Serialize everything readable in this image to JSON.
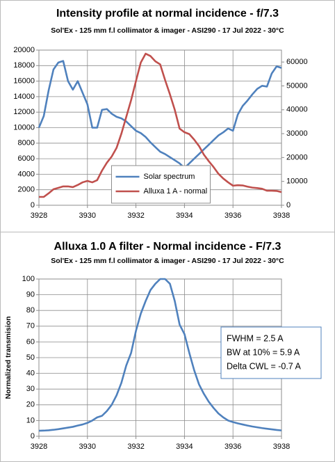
{
  "chart_data": [
    {
      "type": "line",
      "title": "Intensity profile at normal incidence - f/7.3",
      "subtitle": "Sol'Ex - 125 mm f.l collimator & imager - ASI290 - 17 Jul 2022 - 30°C",
      "x": [
        3928.0,
        3928.2,
        3928.4,
        3928.6,
        3928.8,
        3929.0,
        3929.2,
        3929.4,
        3929.6,
        3929.8,
        3930.0,
        3930.2,
        3930.4,
        3930.6,
        3930.8,
        3931.0,
        3931.2,
        3931.4,
        3931.6,
        3931.8,
        3932.0,
        3932.2,
        3932.4,
        3932.6,
        3932.8,
        3933.0,
        3933.2,
        3933.4,
        3933.6,
        3933.8,
        3934.0,
        3934.2,
        3934.4,
        3934.6,
        3934.8,
        3935.0,
        3935.2,
        3935.4,
        3935.6,
        3935.8,
        3936.0,
        3936.2,
        3936.4,
        3936.6,
        3936.8,
        3937.0,
        3937.2,
        3937.4,
        3937.6,
        3937.8,
        3938.0
      ],
      "series": [
        {
          "name": "Solar spectrum",
          "color": "#4f81bd",
          "values": [
            10000,
            11500,
            14800,
            17500,
            18400,
            18600,
            16000,
            14900,
            16000,
            14500,
            13000,
            10000,
            10000,
            12300,
            12400,
            11800,
            11400,
            11200,
            10800,
            10200,
            9600,
            9300,
            8800,
            8100,
            7500,
            6900,
            6600,
            6200,
            5800,
            5400,
            4800,
            5400,
            6000,
            6600,
            7200,
            7800,
            8400,
            9000,
            9400,
            9900,
            9600,
            11700,
            12800,
            13500,
            14300,
            15000,
            15400,
            15300,
            17000,
            17900,
            17700
          ]
        },
        {
          "name": "Alluxa 1 A - normal",
          "color": "#c0504d",
          "axis": "y2",
          "values": [
            3500,
            3500,
            5000,
            6700,
            7300,
            7900,
            7900,
            7600,
            8500,
            9600,
            10200,
            9600,
            10500,
            14500,
            17800,
            20400,
            24000,
            30000,
            37000,
            44000,
            52000,
            59800,
            63500,
            62500,
            60300,
            59000,
            52500,
            46500,
            40000,
            32100,
            30600,
            29800,
            27500,
            24800,
            21200,
            18500,
            16000,
            13200,
            11200,
            9600,
            8200,
            8400,
            8300,
            7800,
            7400,
            7200,
            6900,
            6100,
            6100,
            6000,
            5500
          ]
        }
      ],
      "xlim": [
        3928,
        3938
      ],
      "xticks": [
        3928,
        3930,
        3932,
        3934,
        3936,
        3938
      ],
      "ylim": [
        0,
        20000
      ],
      "yticks": [
        0,
        2000,
        4000,
        6000,
        8000,
        10000,
        12000,
        14000,
        16000,
        18000,
        20000
      ],
      "y2lim": [
        0,
        65000
      ],
      "y2ticks": [
        0,
        10000,
        20000,
        30000,
        40000,
        50000,
        60000
      ],
      "grid": true,
      "legend": "lower center"
    },
    {
      "type": "line",
      "title": "Alluxa 1.0 A filter - Normal incidence - F/7.3",
      "subtitle": "Sol'Ex - 125 mm f.l collimator & imager - ASI290 - 17 Jul 2022 - 30°C",
      "y_label": "Normalized transmision",
      "x": [
        3928.0,
        3928.2,
        3928.4,
        3928.6,
        3928.8,
        3929.0,
        3929.2,
        3929.4,
        3929.6,
        3929.8,
        3930.0,
        3930.2,
        3930.4,
        3930.6,
        3930.8,
        3931.0,
        3931.2,
        3931.4,
        3931.6,
        3931.8,
        3932.0,
        3932.2,
        3932.4,
        3932.6,
        3932.8,
        3933.0,
        3933.2,
        3933.4,
        3933.6,
        3933.8,
        3934.0,
        3934.2,
        3934.4,
        3934.6,
        3934.8,
        3935.0,
        3935.2,
        3935.4,
        3935.6,
        3935.8,
        3936.0,
        3936.2,
        3936.4,
        3936.6,
        3936.8,
        3937.0,
        3937.2,
        3937.4,
        3937.6,
        3937.8,
        3938.0
      ],
      "series": [
        {
          "color": "#4f81bd",
          "values": [
            3.5,
            3.6,
            3.8,
            4.1,
            4.5,
            5,
            5.5,
            6,
            6.8,
            7.5,
            8.5,
            10,
            12,
            13,
            16,
            20,
            26,
            34,
            45,
            53,
            67,
            78,
            86,
            93,
            97,
            100,
            100,
            97,
            86,
            71,
            65,
            53,
            42,
            33,
            27,
            22,
            18,
            14.5,
            12,
            10,
            9,
            8.2,
            7.5,
            6.8,
            6.2,
            5.7,
            5.2,
            4.8,
            4.4,
            4,
            3.7
          ]
        }
      ],
      "xlim": [
        3928,
        3938
      ],
      "xticks": [
        3928,
        3930,
        3932,
        3934,
        3936,
        3938
      ],
      "ylim": [
        0,
        100
      ],
      "yticks": [
        0,
        10,
        20,
        30,
        40,
        50,
        60,
        70,
        80,
        90,
        100
      ],
      "grid": true,
      "annotations": [
        "FWHM = 2.5 A",
        "BW at 10% = 5.9 A",
        "Delta CWL = -0.7 A"
      ]
    }
  ]
}
